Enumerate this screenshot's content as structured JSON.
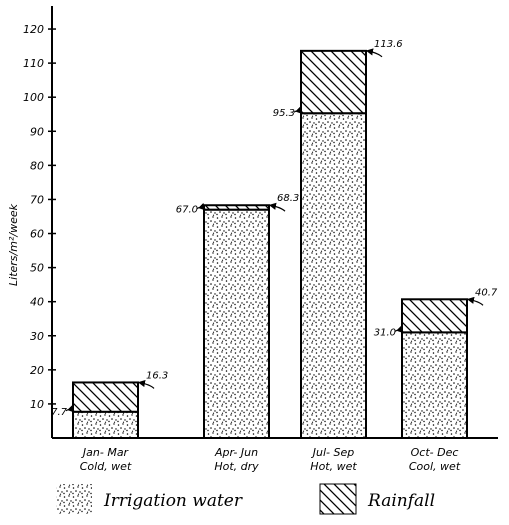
{
  "chart_data": {
    "type": "bar",
    "stacked": true,
    "ylabel": "Liters/m²/week",
    "xlabel": "",
    "ylim": [
      0,
      125
    ],
    "yticks": [
      10,
      20,
      30,
      40,
      50,
      60,
      70,
      80,
      90,
      100,
      110,
      120
    ],
    "categories": [
      {
        "line1": "Jan- Mar",
        "line2": "Cold, wet"
      },
      {
        "line1": "Apr- Jun",
        "line2": "Hot, dry"
      },
      {
        "line1": "Jul- Sep",
        "line2": "Hot, wet"
      },
      {
        "line1": "Oct- Dec",
        "line2": "Cool, wet"
      }
    ],
    "series": [
      {
        "name": "Irrigation water",
        "values": [
          7.7,
          67.0,
          95.3,
          31.0
        ],
        "pattern": "stipple"
      },
      {
        "name": "Rainfall",
        "values": [
          8.6,
          1.3,
          18.3,
          9.7
        ],
        "pattern": "hatch"
      }
    ],
    "annotations": [
      {
        "bar": 0,
        "value": 7.7,
        "text": "7.7",
        "side": "left"
      },
      {
        "bar": 0,
        "value": 16.3,
        "text": "16.3",
        "side": "right"
      },
      {
        "bar": 1,
        "value": 67.0,
        "text": "67.0",
        "side": "left"
      },
      {
        "bar": 1,
        "value": 68.3,
        "text": "68.3",
        "side": "right"
      },
      {
        "bar": 2,
        "value": 95.3,
        "text": "95.3",
        "side": "left"
      },
      {
        "bar": 2,
        "value": 113.6,
        "text": "113.6",
        "side": "right"
      },
      {
        "bar": 3,
        "value": 31.0,
        "text": "31.0",
        "side": "left"
      },
      {
        "bar": 3,
        "value": 40.7,
        "text": "40.7",
        "side": "right"
      }
    ],
    "legend": {
      "position": "bottom",
      "items": [
        "Irrigation water",
        "Rainfall"
      ]
    },
    "grid": false
  }
}
